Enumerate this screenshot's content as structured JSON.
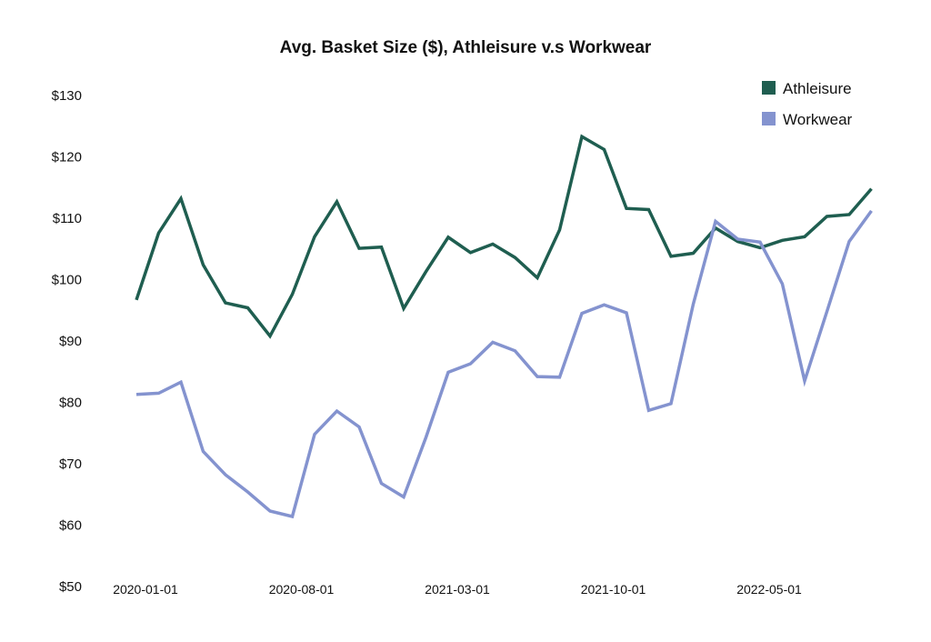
{
  "chart_data": {
    "type": "line",
    "title": "Avg. Basket Size ($), Athleisure v.s Workwear",
    "xlabel": "",
    "ylabel": "",
    "ylim": [
      50,
      130
    ],
    "yticks": [
      "$50",
      "$60",
      "$70",
      "$80",
      "$90",
      "$100",
      "$110",
      "$120",
      "$130"
    ],
    "x_tick_labels": [
      "2020-01-01",
      "2020-08-01",
      "2021-03-01",
      "2021-10-01",
      "2022-05-01"
    ],
    "x": [
      "2020-01",
      "2020-02",
      "2020-03",
      "2020-04",
      "2020-05",
      "2020-06",
      "2020-07",
      "2020-08",
      "2020-09",
      "2020-10",
      "2020-11",
      "2020-12",
      "2021-01",
      "2021-02",
      "2021-03",
      "2021-04",
      "2021-05",
      "2021-06",
      "2021-07",
      "2021-08",
      "2021-09",
      "2021-10",
      "2021-11",
      "2021-12",
      "2022-01",
      "2022-02",
      "2022-03",
      "2022-04",
      "2022-05",
      "2022-06",
      "2022-07",
      "2022-08",
      "2022-09",
      "2022-10",
      "2022-11"
    ],
    "legend_position": "top-right",
    "grid": false,
    "series": [
      {
        "name": "Athleisure",
        "color": "#1f5e50",
        "values": [
          96.7,
          107.6,
          113.2,
          102.4,
          96.2,
          95.4,
          90.8,
          97.6,
          107.0,
          112.7,
          105.1,
          105.3,
          95.3,
          101.3,
          106.9,
          104.4,
          105.8,
          103.6,
          100.3,
          108.1,
          123.3,
          121.2,
          111.6,
          111.4,
          103.8,
          104.3,
          108.4,
          106.2,
          105.2,
          106.4,
          107.0,
          110.3,
          110.6,
          114.8,
          null
        ]
      },
      {
        "name": "Workwear",
        "color": "#8493cf",
        "values": [
          81.3,
          81.5,
          83.3,
          72.0,
          68.2,
          65.4,
          62.3,
          61.4,
          74.8,
          78.6,
          76.0,
          66.8,
          64.6,
          74.3,
          84.9,
          86.3,
          89.8,
          88.4,
          84.2,
          84.1,
          94.5,
          95.9,
          94.6,
          78.7,
          79.8,
          96.0,
          109.5,
          106.6,
          106.1,
          99.3,
          83.5,
          94.8,
          106.2,
          111.2,
          null
        ]
      }
    ]
  }
}
